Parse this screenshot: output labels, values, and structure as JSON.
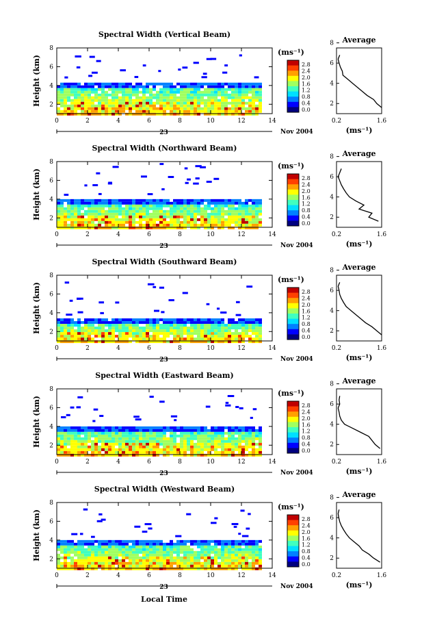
{
  "chart_data": [
    {
      "type": "heatmap",
      "title": "Spectral Width (Vertical Beam)",
      "ylabel": "Height (km)",
      "x_ticks": [
        "0",
        "2",
        "4",
        "6",
        "8",
        "10",
        "12",
        "14"
      ],
      "y_ticks": [
        "2",
        "4",
        "6",
        "8"
      ],
      "xlim": [
        0,
        14
      ],
      "ylim": [
        1,
        8
      ],
      "date_label": "23",
      "date_suffix": "Nov 2004",
      "colorbar": {
        "unit": "(ms⁻¹)",
        "ticks": [
          "2.8",
          "2.4",
          "2.0",
          "1.6",
          "1.2",
          "0.8",
          "0.4",
          "0.0"
        ]
      },
      "dense_layer_top_km": 4.3,
      "profile": {
        "title": "Average",
        "x_ticks": [
          "0.2",
          "1.6"
        ],
        "y_ticks": [
          "2",
          "4",
          "6",
          "8"
        ],
        "xlabel": "(ms⁻¹)",
        "heights": [
          1.6,
          2.0,
          2.4,
          2.8,
          3.2,
          3.6,
          4.0,
          4.4,
          4.8,
          5.2,
          5.6,
          6.0,
          6.4,
          6.8
        ],
        "values": [
          1.6,
          1.45,
          1.35,
          1.15,
          1.0,
          0.85,
          0.7,
          0.55,
          0.4,
          0.38,
          0.32,
          0.28,
          0.25,
          0.3
        ]
      }
    },
    {
      "type": "heatmap",
      "title": "Spectral Width (Northward Beam)",
      "ylabel": "Height (km)",
      "x_ticks": [
        "0",
        "2",
        "4",
        "6",
        "8",
        "10",
        "12",
        "14"
      ],
      "y_ticks": [
        "2",
        "4",
        "6",
        "8"
      ],
      "xlim": [
        0,
        14
      ],
      "ylim": [
        1,
        8
      ],
      "date_label": "23",
      "date_suffix": "Nov 2004",
      "colorbar": {
        "unit": "(ms⁻¹)",
        "ticks": [
          "2.8",
          "2.4",
          "2.0",
          "1.6",
          "1.2",
          "0.8",
          "0.4",
          "0.0"
        ]
      },
      "dense_layer_top_km": 4.0,
      "profile": {
        "title": "Average",
        "x_ticks": [
          "0.2",
          "1.6"
        ],
        "y_ticks": [
          "2",
          "4",
          "6",
          "8"
        ],
        "xlabel": "(ms⁻¹)",
        "heights": [
          1.6,
          2.0,
          2.4,
          2.8,
          3.2,
          3.6,
          4.0,
          4.4,
          4.8,
          5.2,
          5.6,
          6.0,
          6.4,
          6.8
        ],
        "values": [
          1.5,
          1.2,
          1.3,
          0.9,
          1.05,
          0.8,
          0.6,
          0.5,
          0.42,
          0.35,
          0.3,
          0.25,
          0.3,
          0.35
        ]
      }
    },
    {
      "type": "heatmap",
      "title": "Spectral Width (Southward Beam)",
      "ylabel": "Height (km)",
      "x_ticks": [
        "0",
        "2",
        "4",
        "6",
        "8",
        "10",
        "12",
        "14"
      ],
      "y_ticks": [
        "2",
        "4",
        "6",
        "8"
      ],
      "xlim": [
        0,
        14
      ],
      "ylim": [
        1,
        8
      ],
      "date_label": "23",
      "date_suffix": "Nov 2004",
      "colorbar": {
        "unit": "(ms⁻¹)",
        "ticks": [
          "2.8",
          "2.4",
          "2.0",
          "1.6",
          "1.2",
          "0.8",
          "0.4",
          "0.0"
        ]
      },
      "dense_layer_top_km": 3.4,
      "profile": {
        "title": "Average",
        "x_ticks": [
          "0.2",
          "1.6"
        ],
        "y_ticks": [
          "2",
          "4",
          "6",
          "8"
        ],
        "xlabel": "(ms⁻¹)",
        "heights": [
          1.6,
          2.0,
          2.4,
          2.8,
          3.2,
          3.6,
          4.0,
          4.4,
          4.8,
          5.2,
          5.6,
          6.0,
          6.4,
          6.8
        ],
        "values": [
          1.6,
          1.45,
          1.3,
          1.1,
          0.95,
          0.8,
          0.65,
          0.5,
          0.42,
          0.35,
          0.3,
          0.28,
          0.25,
          0.3
        ]
      }
    },
    {
      "type": "heatmap",
      "title": "Spectral Width (Eastward Beam)",
      "ylabel": "Height (km)",
      "x_ticks": [
        "0",
        "2",
        "4",
        "6",
        "8",
        "10",
        "12",
        "14"
      ],
      "y_ticks": [
        "2",
        "4",
        "6",
        "8"
      ],
      "xlim": [
        0,
        14
      ],
      "ylim": [
        1,
        8
      ],
      "date_label": "23",
      "date_suffix": "Nov 2004",
      "colorbar": {
        "unit": "(ms⁻¹)",
        "ticks": [
          "2.8",
          "2.4",
          "2.0",
          "1.6",
          "1.2",
          "0.8",
          "0.4",
          "0.0"
        ]
      },
      "dense_layer_top_km": 4.0,
      "profile": {
        "title": "Average",
        "x_ticks": [
          "0.2",
          "1.6"
        ],
        "y_ticks": [
          "2",
          "4",
          "6",
          "8"
        ],
        "xlabel": "(ms⁻¹)",
        "heights": [
          1.6,
          2.0,
          2.4,
          2.8,
          3.2,
          3.6,
          4.0,
          4.4,
          4.8,
          5.2,
          5.6,
          6.0,
          6.4,
          6.8
        ],
        "values": [
          1.55,
          1.4,
          1.3,
          1.2,
          0.95,
          0.7,
          0.45,
          0.35,
          0.3,
          0.28,
          0.25,
          0.3,
          0.28,
          0.3
        ]
      }
    },
    {
      "type": "heatmap",
      "title": "Spectral Width (Westward Beam)",
      "ylabel": "Height (km)",
      "x_ticks": [
        "0",
        "2",
        "4",
        "6",
        "8",
        "10",
        "12",
        "14"
      ],
      "y_ticks": [
        "2",
        "4",
        "6",
        "8"
      ],
      "xlim": [
        0,
        14
      ],
      "ylim": [
        1,
        8
      ],
      "date_label": "23",
      "date_suffix": "Nov 2004",
      "colorbar": {
        "unit": "(ms⁻¹)",
        "ticks": [
          "2.8",
          "2.4",
          "2.0",
          "1.6",
          "1.2",
          "0.8",
          "0.4",
          "0.0"
        ]
      },
      "dense_layer_top_km": 4.0,
      "profile": {
        "title": "Average",
        "x_ticks": [
          "0.2",
          "1.6"
        ],
        "y_ticks": [
          "2",
          "4",
          "6",
          "8"
        ],
        "xlabel": "(ms⁻¹)",
        "heights": [
          1.6,
          2.0,
          2.4,
          2.8,
          3.2,
          3.6,
          4.0,
          4.4,
          4.8,
          5.2,
          5.6,
          6.0,
          6.4,
          6.8
        ],
        "values": [
          1.55,
          1.35,
          1.2,
          1.0,
          0.9,
          0.75,
          0.6,
          0.5,
          0.42,
          0.35,
          0.3,
          0.27,
          0.25,
          0.28
        ]
      }
    }
  ],
  "footer": {
    "xlabel": "Local Time"
  },
  "colors": {
    "scale": [
      "#00007f",
      "#0000ff",
      "#0080ff",
      "#00e0ff",
      "#40ffbf",
      "#a0ff60",
      "#ffff00",
      "#ffa000",
      "#ff4000",
      "#c00000"
    ]
  }
}
